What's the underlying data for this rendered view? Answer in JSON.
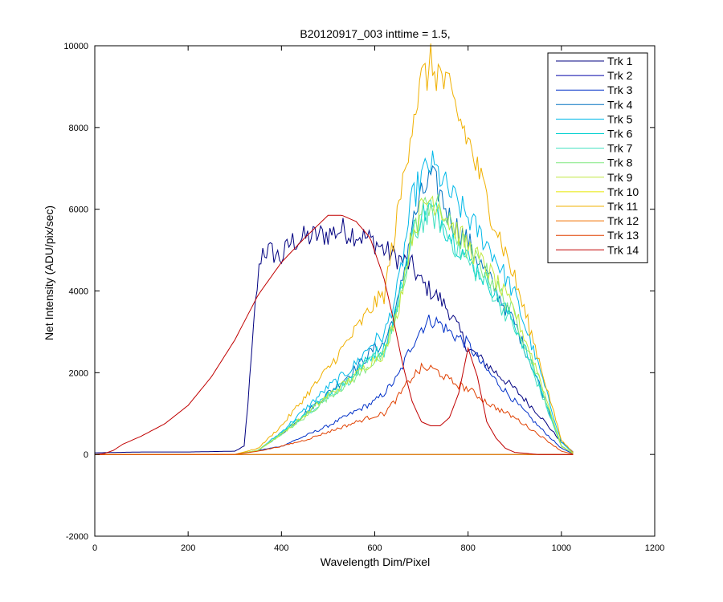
{
  "chart_data": {
    "type": "line",
    "title": "B20120917_003 inttime = 1.5,",
    "xlabel": "Wavelength Dim/Pixel",
    "ylabel": "Net Intensity (ADU/pix/sec)",
    "xlim": [
      0,
      1200
    ],
    "ylim": [
      -2000,
      10000
    ],
    "x_ticks": [
      0,
      200,
      400,
      600,
      800,
      1000,
      1200
    ],
    "y_ticks": [
      -2000,
      0,
      2000,
      4000,
      6000,
      8000,
      10000
    ],
    "grid": false,
    "legend_position": "top-right",
    "series": [
      {
        "name": "Trk 1",
        "color": "#000080",
        "x": [
          0,
          100,
          200,
          300,
          320,
          330,
          345,
          355,
          360,
          380,
          400,
          420,
          450,
          500,
          530,
          560,
          600,
          620,
          650,
          680,
          700,
          720,
          740,
          760,
          800,
          830,
          860,
          900,
          950,
          1000,
          1025
        ],
        "y": [
          40,
          60,
          60,
          80,
          200,
          1500,
          3800,
          4800,
          5000,
          4950,
          4800,
          5200,
          5300,
          5400,
          5500,
          5400,
          5200,
          5000,
          4800,
          4600,
          4200,
          4000,
          3800,
          3500,
          2600,
          2300,
          2000,
          1600,
          1000,
          300,
          60
        ]
      },
      {
        "name": "Trk 2",
        "color": "#0000a8",
        "x": [
          0,
          1025
        ],
        "y": [
          0,
          0
        ]
      },
      {
        "name": "Trk 3",
        "color": "#0030c8",
        "x": [
          0,
          300,
          400,
          500,
          550,
          600,
          620,
          650,
          680,
          700,
          720,
          740,
          760,
          800,
          830,
          860,
          900,
          950,
          1000,
          1025
        ],
        "y": [
          0,
          0,
          200,
          700,
          1000,
          1300,
          1500,
          1900,
          2700,
          3100,
          3300,
          3200,
          3000,
          2700,
          2200,
          1800,
          1300,
          700,
          150,
          20
        ]
      },
      {
        "name": "Trk 4",
        "color": "#0070c0",
        "x": [
          0,
          300,
          350,
          400,
          450,
          500,
          550,
          600,
          620,
          650,
          680,
          700,
          720,
          740,
          760,
          800,
          850,
          900,
          950,
          1000,
          1025
        ],
        "y": [
          0,
          0,
          100,
          500,
          1000,
          1500,
          2000,
          2600,
          2700,
          3700,
          5600,
          6300,
          6800,
          6400,
          5800,
          5200,
          4200,
          3200,
          1800,
          200,
          30
        ]
      },
      {
        "name": "Trk 5",
        "color": "#00b8e8",
        "x": [
          0,
          300,
          350,
          400,
          450,
          500,
          550,
          600,
          620,
          650,
          680,
          700,
          720,
          740,
          760,
          800,
          850,
          900,
          950,
          1000,
          1025
        ],
        "y": [
          0,
          0,
          100,
          550,
          1100,
          1650,
          2100,
          2800,
          2900,
          4100,
          6200,
          6800,
          7100,
          6800,
          6400,
          5800,
          5000,
          3900,
          2200,
          300,
          40
        ]
      },
      {
        "name": "Trk 6",
        "color": "#00d0d0",
        "x": [
          0,
          300,
          350,
          400,
          450,
          500,
          550,
          600,
          620,
          650,
          680,
          700,
          720,
          740,
          760,
          800,
          850,
          900,
          950,
          1000,
          1025
        ],
        "y": [
          0,
          0,
          100,
          500,
          1000,
          1500,
          1900,
          2500,
          2600,
          3700,
          5400,
          5900,
          6000,
          5800,
          5400,
          4800,
          4100,
          3200,
          1800,
          200,
          30
        ]
      },
      {
        "name": "Trk 7",
        "color": "#40e0c0",
        "x": [
          0,
          300,
          350,
          400,
          450,
          500,
          550,
          600,
          620,
          650,
          680,
          700,
          720,
          740,
          760,
          800,
          850,
          900,
          950,
          1000,
          1025
        ],
        "y": [
          0,
          0,
          100,
          500,
          950,
          1400,
          1850,
          2400,
          2500,
          3600,
          5200,
          5700,
          5900,
          5700,
          5300,
          4700,
          4000,
          3100,
          1700,
          200,
          30
        ]
      },
      {
        "name": "Trk 8",
        "color": "#80e880",
        "x": [
          0,
          300,
          350,
          400,
          450,
          500,
          550,
          600,
          620,
          650,
          680,
          700,
          720,
          740,
          760,
          800,
          850,
          900,
          950,
          1000,
          1025
        ],
        "y": [
          0,
          0,
          100,
          500,
          900,
          1400,
          1800,
          2300,
          2400,
          3500,
          5300,
          5900,
          6200,
          6000,
          5600,
          5000,
          4300,
          3400,
          1900,
          200,
          30
        ]
      },
      {
        "name": "Trk 9",
        "color": "#c0e840",
        "x": [
          0,
          300,
          350,
          400,
          450,
          500,
          550,
          600,
          620,
          650,
          680,
          700,
          720,
          740,
          760,
          800,
          850,
          900,
          950,
          1000,
          1025
        ],
        "y": [
          0,
          0,
          100,
          500,
          950,
          1450,
          1850,
          2350,
          2450,
          3550,
          5400,
          6000,
          6300,
          6100,
          5700,
          5100,
          4400,
          3500,
          2000,
          200,
          30
        ]
      },
      {
        "name": "Trk 10",
        "color": "#e8e800",
        "x": [
          0,
          1025
        ],
        "y": [
          0,
          0
        ]
      },
      {
        "name": "Trk 11",
        "color": "#f0b000",
        "x": [
          0,
          300,
          350,
          400,
          450,
          500,
          550,
          600,
          620,
          650,
          680,
          700,
          720,
          740,
          760,
          800,
          850,
          900,
          950,
          1000,
          1025
        ],
        "y": [
          0,
          0,
          150,
          700,
          1400,
          2100,
          2900,
          3700,
          3900,
          5900,
          8200,
          9100,
          9500,
          9300,
          8800,
          7700,
          5900,
          4300,
          2400,
          350,
          50
        ]
      },
      {
        "name": "Trk 12",
        "color": "#f07000",
        "x": [
          0,
          1025
        ],
        "y": [
          0,
          0
        ]
      },
      {
        "name": "Trk 13",
        "color": "#e04000",
        "x": [
          0,
          300,
          350,
          400,
          450,
          500,
          550,
          600,
          620,
          650,
          680,
          700,
          720,
          740,
          760,
          800,
          850,
          900,
          950,
          1000,
          1025
        ],
        "y": [
          0,
          0,
          80,
          200,
          350,
          550,
          750,
          950,
          1000,
          1400,
          1900,
          2100,
          2100,
          2000,
          1800,
          1600,
          1200,
          900,
          500,
          80,
          10
        ]
      },
      {
        "name": "Trk 14",
        "color": "#c00000",
        "x": [
          0,
          20,
          40,
          60,
          100,
          150,
          200,
          250,
          300,
          350,
          400,
          450,
          500,
          530,
          560,
          590,
          620,
          640,
          660,
          680,
          700,
          720,
          740,
          760,
          780,
          800,
          820,
          840,
          860,
          880,
          900,
          950,
          1000
        ],
        "y": [
          0,
          20,
          100,
          250,
          450,
          750,
          1200,
          1900,
          2800,
          3900,
          4700,
          5300,
          5850,
          5850,
          5700,
          5300,
          4300,
          3300,
          2200,
          1300,
          800,
          700,
          700,
          900,
          1500,
          2600,
          1900,
          800,
          400,
          150,
          50,
          0,
          0
        ]
      }
    ]
  }
}
